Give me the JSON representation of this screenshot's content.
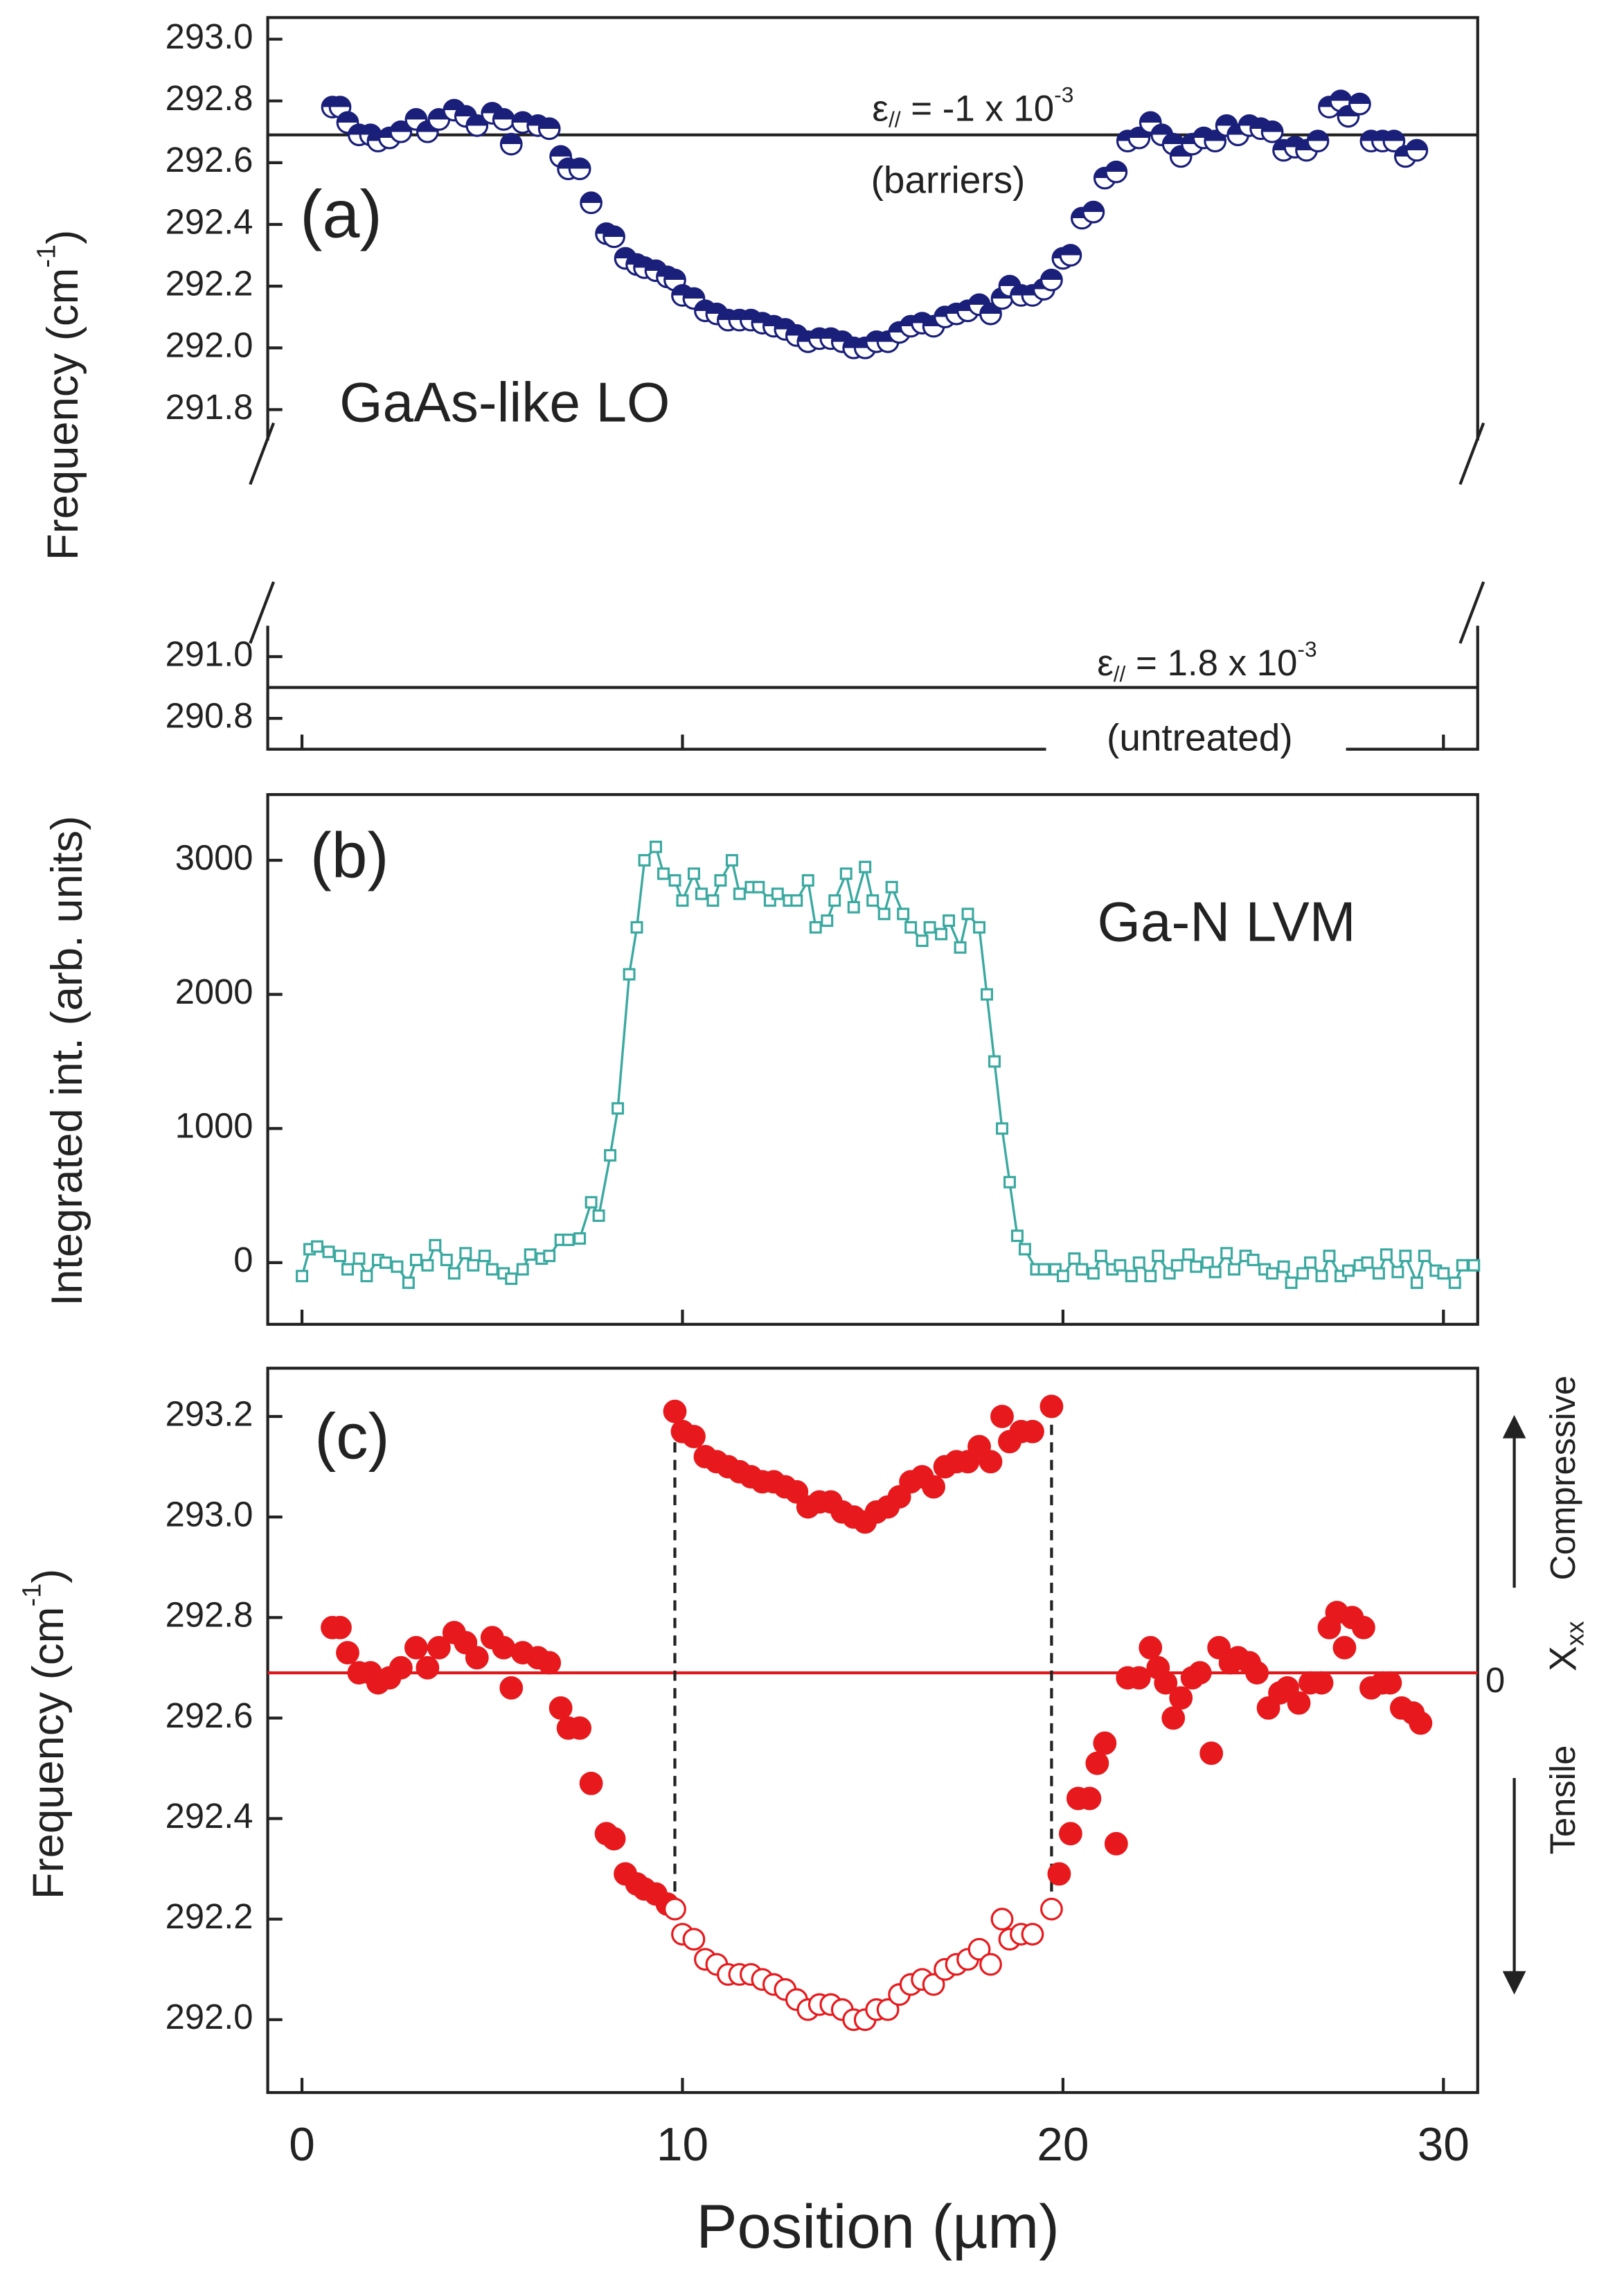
{
  "chart_data": [
    {
      "type": "scatter",
      "panel_label": "(a)",
      "annotation": "GaAs-like LO",
      "ylabel": [
        "Frequency (cm",
        "-1",
        ")"
      ],
      "strain_barriers": [
        "ε",
        "//",
        " = -1 x 10",
        "-3"
      ],
      "strain_barriers_note": "(barriers)",
      "strain_untreated": [
        "ε",
        "//",
        " = 1.8 x 10",
        "-3"
      ],
      "strain_untreated_note": "(untreated)",
      "xlim": [
        -0.9,
        30.9
      ],
      "xticks": [
        0,
        10,
        20,
        30
      ],
      "show_xtick_labels": false,
      "ylim": [
        290.7,
        293.07
      ],
      "yticks": [
        290.8,
        {
          "value": 291,
          "label": "291.0"
        },
        291.8,
        {
          "value": 292,
          "label": "292.0"
        },
        292.2,
        292.4,
        292.6,
        292.8,
        {
          "value": 293,
          "label": "293.0"
        }
      ],
      "axis_break": [
        291.1,
        291.7
      ],
      "hlines": [
        {
          "value": 292.69,
          "color": "#222222"
        },
        {
          "value": 290.9,
          "color": "#222222"
        }
      ],
      "series": [
        {
          "marker": "half-circle",
          "color": "#1a1f7a",
          "x": [
            0.8,
            1.0,
            1.2,
            1.5,
            1.8,
            2.0,
            2.3,
            2.6,
            3.0,
            3.3,
            3.6,
            4.0,
            4.3,
            4.6,
            5.0,
            5.3,
            5.5,
            5.8,
            6.2,
            6.5,
            6.8,
            7.0,
            7.3,
            7.6,
            8.0,
            8.2,
            8.5,
            8.8,
            9.0,
            9.3,
            9.6,
            9.8,
            10.0,
            10.3,
            10.6,
            10.9,
            11.2,
            11.5,
            11.8,
            12.1,
            12.4,
            12.7,
            13.0,
            13.3,
            13.6,
            13.9,
            14.2,
            14.5,
            14.8,
            15.1,
            15.4,
            15.7,
            16.0,
            16.3,
            16.6,
            16.9,
            17.2,
            17.5,
            17.8,
            18.1,
            18.4,
            18.6,
            18.9,
            19.2,
            19.5,
            19.7,
            20.0,
            20.2,
            20.5,
            20.8,
            21.1,
            21.4,
            21.7,
            22.0,
            22.3,
            22.6,
            22.9,
            23.1,
            23.4,
            23.7,
            24.0,
            24.3,
            24.6,
            24.9,
            25.2,
            25.5,
            25.8,
            26.1,
            26.4,
            26.7,
            27.0,
            27.3,
            27.5,
            27.8,
            28.1,
            28.4,
            28.7,
            29.0,
            29.3
          ],
          "values": [
            292.78,
            292.78,
            292.73,
            292.69,
            292.69,
            292.67,
            292.68,
            292.7,
            292.74,
            292.7,
            292.74,
            292.77,
            292.75,
            292.72,
            292.76,
            292.74,
            292.66,
            292.73,
            292.72,
            292.71,
            292.62,
            292.58,
            292.58,
            292.47,
            292.37,
            292.36,
            292.29,
            292.27,
            292.26,
            292.25,
            292.23,
            292.22,
            292.17,
            292.16,
            292.12,
            292.11,
            292.09,
            292.09,
            292.09,
            292.08,
            292.07,
            292.06,
            292.04,
            292.02,
            292.03,
            292.03,
            292.02,
            292.0,
            292.0,
            292.02,
            292.02,
            292.05,
            292.07,
            292.08,
            292.07,
            292.1,
            292.11,
            292.12,
            292.14,
            292.11,
            292.16,
            292.2,
            292.17,
            292.17,
            292.19,
            292.22,
            292.29,
            292.3,
            292.42,
            292.44,
            292.55,
            292.57,
            292.67,
            292.68,
            292.73,
            292.69,
            292.66,
            292.62,
            292.66,
            292.68,
            292.67,
            292.72,
            292.69,
            292.72,
            292.71,
            292.7,
            292.64,
            292.65,
            292.64,
            292.67,
            292.78,
            292.8,
            292.75,
            292.79,
            292.67,
            292.67,
            292.67,
            292.62,
            292.64
          ]
        }
      ]
    },
    {
      "type": "line",
      "panel_label": "(b)",
      "annotation": "Ga-N LVM",
      "ylabel": "Integrated int. (arb. units)",
      "xlim": [
        -0.9,
        30.9
      ],
      "xticks": [
        0,
        10,
        20,
        30
      ],
      "show_xtick_labels": false,
      "ylim": [
        -460,
        3490
      ],
      "yticks": [
        0,
        1000,
        2000,
        3000
      ],
      "series": [
        {
          "marker": "square-open",
          "color": "#3aa9a0",
          "line": true,
          "x": [
            0.0,
            0.2,
            0.4,
            0.7,
            1.0,
            1.2,
            1.5,
            1.7,
            2.0,
            2.2,
            2.5,
            2.8,
            3.0,
            3.3,
            3.5,
            3.8,
            4.0,
            4.3,
            4.5,
            4.8,
            5.0,
            5.3,
            5.5,
            5.8,
            6.0,
            6.3,
            6.5,
            6.8,
            7.0,
            7.3,
            7.6,
            7.8,
            8.1,
            8.3,
            8.6,
            8.8,
            9.0,
            9.3,
            9.5,
            9.8,
            10.0,
            10.3,
            10.5,
            10.8,
            11.0,
            11.3,
            11.5,
            11.8,
            12.0,
            12.3,
            12.5,
            12.8,
            13.0,
            13.3,
            13.5,
            13.8,
            14.0,
            14.3,
            14.5,
            14.8,
            15.0,
            15.3,
            15.5,
            15.8,
            16.0,
            16.3,
            16.5,
            16.8,
            17.0,
            17.3,
            17.5,
            17.8,
            18.0,
            18.2,
            18.4,
            18.6,
            18.8,
            19.0,
            19.3,
            19.5,
            19.8,
            20.0,
            20.3,
            20.5,
            20.8,
            21.0,
            21.3,
            21.5,
            21.8,
            22.0,
            22.3,
            22.5,
            22.8,
            23.0,
            23.3,
            23.5,
            23.8,
            24.0,
            24.3,
            24.5,
            24.8,
            25.0,
            25.3,
            25.5,
            25.8,
            26.0,
            26.3,
            26.5,
            26.8,
            27.0,
            27.3,
            27.5,
            27.8,
            28.0,
            28.3,
            28.5,
            28.8,
            29.0,
            29.3,
            29.5,
            29.8,
            30.0,
            30.3,
            30.5,
            30.8
          ],
          "values": [
            -100,
            100,
            120,
            80,
            50,
            -50,
            30,
            -100,
            20,
            0,
            -30,
            -150,
            20,
            -20,
            130,
            20,
            -80,
            70,
            -20,
            50,
            -50,
            -80,
            -120,
            -50,
            60,
            30,
            50,
            170,
            170,
            180,
            450,
            350,
            800,
            1150,
            2150,
            2500,
            3000,
            3100,
            2900,
            2850,
            2700,
            2900,
            2750,
            2700,
            2850,
            3000,
            2750,
            2800,
            2800,
            2700,
            2750,
            2700,
            2700,
            2850,
            2500,
            2550,
            2700,
            2900,
            2650,
            2950,
            2700,
            2600,
            2800,
            2600,
            2500,
            2400,
            2500,
            2450,
            2550,
            2350,
            2600,
            2500,
            2000,
            1500,
            1000,
            600,
            200,
            100,
            -50,
            -50,
            -50,
            -100,
            30,
            -50,
            -80,
            50,
            -50,
            -20,
            -100,
            0,
            -100,
            50,
            -80,
            -20,
            60,
            -30,
            0,
            -70,
            70,
            -50,
            50,
            20,
            -50,
            -80,
            -30,
            -150,
            -80,
            0,
            -100,
            50,
            -100,
            -60,
            -20,
            0,
            -80,
            60,
            -70,
            50,
            -150,
            50,
            -60,
            -80,
            -150,
            -20,
            -20
          ]
        }
      ]
    },
    {
      "type": "scatter",
      "panel_label": "(c)",
      "ylabel": [
        "Frequency (cm",
        "-1",
        ")"
      ],
      "xlabel": "Position (µm)",
      "right_labels": {
        "zero": "0",
        "symbol": "X",
        "subscript": "xx",
        "up": "Compressive",
        "down": "Tensile"
      },
      "xlim": [
        -0.9,
        30.9
      ],
      "xticks": [
        0,
        10,
        20,
        30
      ],
      "show_xtick_labels": true,
      "ylim": [
        291.855,
        293.296
      ],
      "yticks": [
        {
          "value": 292,
          "label": "292.0"
        },
        292.2,
        292.4,
        292.6,
        292.8,
        {
          "value": 293,
          "label": "293.0"
        },
        293.2
      ],
      "hlines": [
        {
          "value": 292.69,
          "color": "#e0191c"
        }
      ],
      "vlines": [
        {
          "x": 9.8,
          "y": [
            292.22,
            293.21
          ]
        },
        {
          "x": 19.7,
          "y": [
            292.22,
            293.22
          ]
        }
      ],
      "series": [
        {
          "marker": "circle-filled",
          "color": "#e8191c",
          "x": [
            0.8,
            1.0,
            1.2,
            1.5,
            1.8,
            2.0,
            2.3,
            2.6,
            3.0,
            3.3,
            3.6,
            4.0,
            4.3,
            4.6,
            5.0,
            5.3,
            5.5,
            5.8,
            6.2,
            6.5,
            6.8,
            7.0,
            7.3,
            7.6,
            8.0,
            8.2,
            8.5,
            8.8,
            9.0,
            9.3,
            9.6,
            19.9,
            20.2,
            20.4,
            20.7,
            20.9,
            21.1,
            21.4,
            21.7,
            22.0,
            22.3,
            22.5,
            22.7,
            22.9,
            23.1,
            23.4,
            23.6,
            23.9,
            24.1,
            24.4,
            24.6,
            24.9,
            25.1,
            25.4,
            25.7,
            25.9,
            26.2,
            26.5,
            26.8,
            27.0,
            27.2,
            27.4,
            27.6,
            27.9,
            28.1,
            28.4,
            28.6,
            28.9,
            29.2,
            29.4
          ],
          "values": [
            292.78,
            292.78,
            292.73,
            292.69,
            292.69,
            292.67,
            292.68,
            292.7,
            292.74,
            292.7,
            292.74,
            292.77,
            292.75,
            292.72,
            292.76,
            292.74,
            292.66,
            292.73,
            292.72,
            292.71,
            292.62,
            292.58,
            292.58,
            292.47,
            292.37,
            292.36,
            292.29,
            292.27,
            292.26,
            292.25,
            292.23,
            292.29,
            292.37,
            292.44,
            292.44,
            292.51,
            292.55,
            292.35,
            292.68,
            292.68,
            292.74,
            292.7,
            292.67,
            292.6,
            292.64,
            292.68,
            292.69,
            292.53,
            292.74,
            292.71,
            292.72,
            292.71,
            292.69,
            292.62,
            292.65,
            292.66,
            292.63,
            292.67,
            292.67,
            292.78,
            292.81,
            292.74,
            292.8,
            292.78,
            292.66,
            292.67,
            292.67,
            292.62,
            292.61,
            292.59
          ]
        },
        {
          "marker": "circle-open",
          "color": "#e8191c",
          "x": [
            9.8,
            10.0,
            10.3,
            10.6,
            10.9,
            11.2,
            11.5,
            11.8,
            12.1,
            12.4,
            12.7,
            13.0,
            13.3,
            13.6,
            13.9,
            14.2,
            14.5,
            14.8,
            15.1,
            15.4,
            15.7,
            16.0,
            16.3,
            16.6,
            16.9,
            17.2,
            17.5,
            17.8,
            18.1,
            18.4,
            18.6,
            18.9,
            19.2,
            19.7
          ],
          "values": [
            292.22,
            292.17,
            292.16,
            292.12,
            292.11,
            292.09,
            292.09,
            292.09,
            292.08,
            292.07,
            292.06,
            292.04,
            292.02,
            292.03,
            292.03,
            292.02,
            292.0,
            292.0,
            292.02,
            292.02,
            292.05,
            292.07,
            292.08,
            292.07,
            292.1,
            292.11,
            292.12,
            292.14,
            292.11,
            292.2,
            292.16,
            292.17,
            292.17,
            292.22
          ]
        },
        {
          "marker": "circle-filled",
          "color": "#e8191c",
          "x": [
            9.8,
            10.0,
            10.3,
            10.6,
            10.9,
            11.2,
            11.5,
            11.8,
            12.1,
            12.4,
            12.7,
            13.0,
            13.3,
            13.6,
            13.9,
            14.2,
            14.5,
            14.8,
            15.1,
            15.4,
            15.7,
            16.0,
            16.3,
            16.6,
            16.9,
            17.2,
            17.5,
            17.8,
            18.1,
            18.4,
            18.6,
            18.9,
            19.2,
            19.7
          ],
          "values": [
            293.21,
            293.17,
            293.16,
            293.12,
            293.11,
            293.1,
            293.09,
            293.08,
            293.07,
            293.07,
            293.06,
            293.05,
            293.02,
            293.03,
            293.03,
            293.01,
            293.0,
            292.99,
            293.01,
            293.02,
            293.04,
            293.07,
            293.08,
            293.06,
            293.1,
            293.11,
            293.11,
            293.14,
            293.11,
            293.2,
            293.15,
            293.17,
            293.17,
            293.22
          ]
        }
      ]
    }
  ]
}
